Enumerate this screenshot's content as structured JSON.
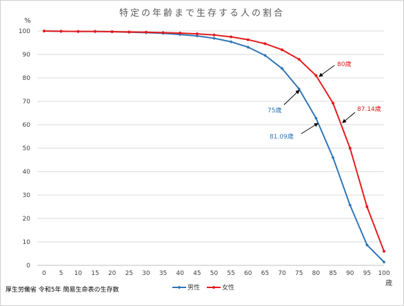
{
  "chart_data": {
    "type": "line",
    "title": "特定の年齢まで生存する人の割合",
    "ylabel": "%",
    "xlabel": "歳",
    "x": [
      0,
      5,
      10,
      15,
      20,
      25,
      30,
      35,
      40,
      45,
      50,
      55,
      60,
      65,
      70,
      75,
      80,
      85,
      90,
      95,
      100
    ],
    "ylim": [
      0,
      100
    ],
    "yticks": [
      0,
      10,
      20,
      30,
      40,
      50,
      60,
      70,
      80,
      90,
      100
    ],
    "grid": true,
    "legend": "bottom",
    "series": [
      {
        "name": "男性",
        "color": "#2e75b6",
        "values": [
          100,
          99.9,
          99.8,
          99.8,
          99.7,
          99.5,
          99.3,
          99.0,
          98.5,
          97.9,
          96.9,
          95.4,
          93.1,
          89.6,
          84.0,
          75.3,
          62.8,
          46.0,
          25.7,
          8.7,
          1.4
        ]
      },
      {
        "name": "女性",
        "color": "#e41a1c",
        "values": [
          100,
          99.9,
          99.8,
          99.8,
          99.7,
          99.6,
          99.5,
          99.3,
          99.1,
          98.8,
          98.3,
          97.5,
          96.3,
          94.6,
          92.0,
          87.9,
          81.0,
          69.2,
          50.0,
          25.0,
          6.0
        ]
      }
    ],
    "annotations": [
      {
        "text": "80歳",
        "color": "#e41a1c",
        "x": 80,
        "y": 81.0
      },
      {
        "text": "87.14歳",
        "color": "#e41a1c",
        "x": 87.14,
        "y": 61.0
      },
      {
        "text": "75歳",
        "color": "#2e75b6",
        "x": 75,
        "y": 75.3
      },
      {
        "text": "81.09歳",
        "color": "#2e75b6",
        "x": 81.09,
        "y": 61.0
      }
    ]
  },
  "source": "厚生労働省 令和5年 簡易生命表の生存数"
}
